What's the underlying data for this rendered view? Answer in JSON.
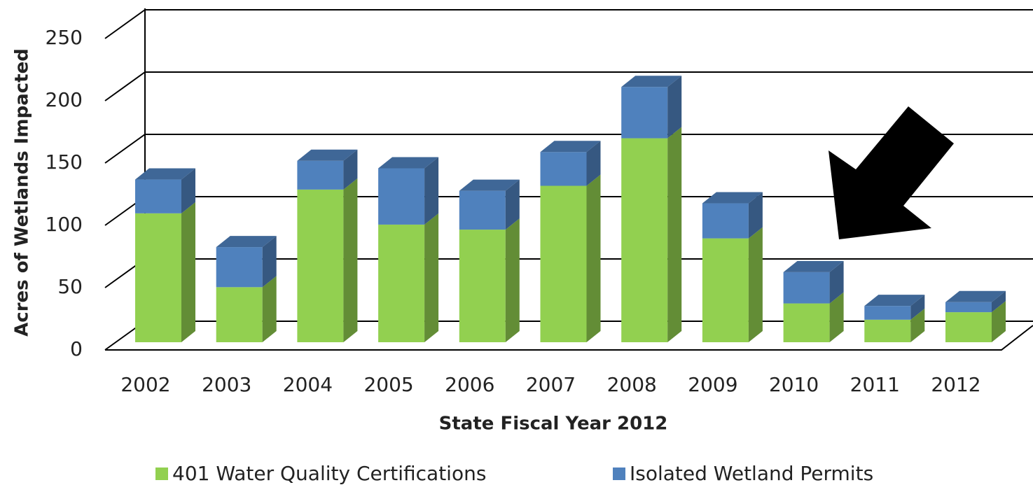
{
  "chart_data": {
    "type": "bar3d_stacked",
    "x_label": "State Fiscal Year 2012",
    "y_label": "Acres of Wetlands Impacted",
    "categories": [
      "2002",
      "2003",
      "2004",
      "2005",
      "2006",
      "2007",
      "2008",
      "2009",
      "2010",
      "2011",
      "2012"
    ],
    "series": [
      {
        "name": "401 Water Quality Certifications",
        "color": "#92d050",
        "values": [
          103,
          44,
          122,
          94,
          90,
          125,
          163,
          83,
          31,
          18,
          24
        ]
      },
      {
        "name": "Isolated Wetland Permits",
        "color": "#4f81bd",
        "values": [
          27,
          32,
          23,
          45,
          31,
          27,
          41,
          28,
          25,
          11,
          8
        ]
      }
    ],
    "ylim": [
      0,
      250
    ],
    "yticks": [
      0,
      50,
      100,
      150,
      200,
      250
    ],
    "grid": true,
    "legend": "bottom"
  }
}
